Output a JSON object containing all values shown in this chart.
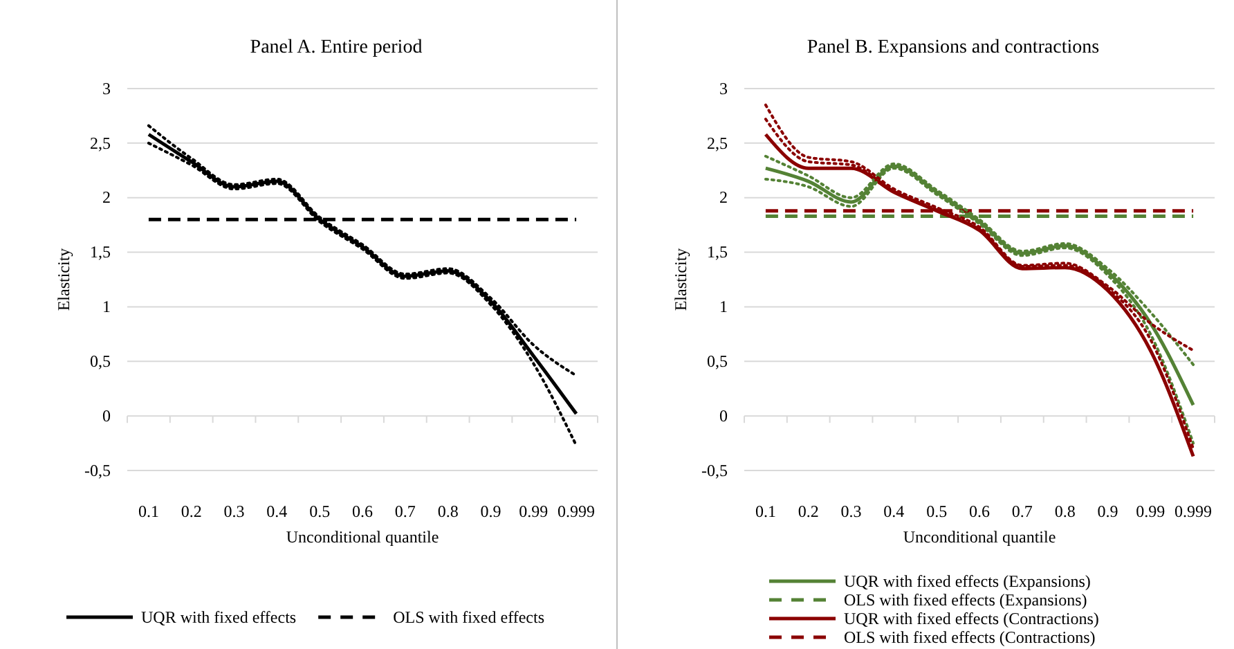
{
  "chart_data": [
    {
      "type": "line",
      "title": "Panel A. Entire period",
      "xlabel": "Unconditional quantile",
      "ylabel": "Elasticity",
      "categories": [
        "0.1",
        "0.2",
        "0.3",
        "0.4",
        "0.5",
        "0.6",
        "0.7",
        "0.8",
        "0.9",
        "0.99",
        "0.999"
      ],
      "ylim": [
        -0.5,
        3
      ],
      "yticks": [
        {
          "value": -0.5,
          "label": "-0,5"
        },
        0,
        {
          "value": 0.5,
          "label": "0,5"
        },
        1,
        {
          "value": 1.5,
          "label": "1,5"
        },
        2,
        {
          "value": 2.5,
          "label": "2,5"
        },
        3
      ],
      "grid": "y",
      "legend": "bottom",
      "marker": "none",
      "series": [
        {
          "name": "UQR with fixed effects",
          "color": "#000000",
          "line_style": "solid",
          "values": [
            2.58,
            2.33,
            2.1,
            2.15,
            1.8,
            1.55,
            1.28,
            1.33,
            1.05,
            0.55,
            0.02
          ]
        },
        {
          "name": "OLS with fixed effects",
          "color": "#000000",
          "line_style": "dashed",
          "values": [
            1.8,
            1.8,
            1.8,
            1.8,
            1.8,
            1.8,
            1.8,
            1.8,
            1.8,
            1.8,
            1.8
          ]
        },
        {
          "color": "#000000",
          "line_style": "dotted",
          "values": [
            2.66,
            2.36,
            2.12,
            2.17,
            1.82,
            1.57,
            1.3,
            1.35,
            1.08,
            0.65,
            0.37
          ]
        },
        {
          "color": "#000000",
          "line_style": "dotted",
          "values": [
            2.5,
            2.3,
            2.08,
            2.13,
            1.78,
            1.53,
            1.26,
            1.31,
            1.02,
            0.48,
            -0.27
          ]
        }
      ]
    },
    {
      "type": "line",
      "title": "Panel B. Expansions and contractions",
      "xlabel": "Unconditional quantile",
      "ylabel": "Elasticity",
      "categories": [
        "0.1",
        "0.2",
        "0.3",
        "0.4",
        "0.5",
        "0.6",
        "0.7",
        "0.8",
        "0.9",
        "0.99",
        "0.999"
      ],
      "ylim": [
        -0.5,
        3
      ],
      "yticks": [
        {
          "value": -0.5,
          "label": "-0,5"
        },
        0,
        {
          "value": 0.5,
          "label": "0,5"
        },
        1,
        {
          "value": 1.5,
          "label": "1,5"
        },
        2,
        {
          "value": 2.5,
          "label": "2,5"
        },
        3
      ],
      "grid": "y",
      "legend": "bottom",
      "marker": "none",
      "series": [
        {
          "name": "UQR with fixed effects (Expansions)",
          "color": "#548235",
          "line_style": "solid",
          "values": [
            2.27,
            2.15,
            1.96,
            2.29,
            2.05,
            1.78,
            1.49,
            1.56,
            1.32,
            0.85,
            0.1
          ]
        },
        {
          "name": "OLS with fixed effects (Expansions)",
          "color": "#548235",
          "line_style": "dashed",
          "values": [
            1.83,
            1.83,
            1.83,
            1.83,
            1.83,
            1.83,
            1.83,
            1.83,
            1.83,
            1.83,
            1.83
          ]
        },
        {
          "name": "UQR with fixed effects (Contractions)",
          "color": "#8b0000",
          "line_style": "solid",
          "values": [
            2.58,
            2.27,
            2.27,
            2.05,
            1.88,
            1.7,
            1.35,
            1.36,
            1.15,
            0.6,
            -0.37
          ]
        },
        {
          "name": "OLS with fixed effects (Contractions)",
          "color": "#8b0000",
          "line_style": "dashed",
          "values": [
            1.88,
            1.88,
            1.88,
            1.88,
            1.88,
            1.88,
            1.88,
            1.88,
            1.88,
            1.88,
            1.88
          ]
        },
        {
          "color": "#548235",
          "line_style": "dotted",
          "values": [
            2.38,
            2.2,
            2.0,
            2.31,
            2.07,
            1.8,
            1.51,
            1.58,
            1.35,
            0.95,
            0.47
          ]
        },
        {
          "color": "#548235",
          "line_style": "dotted",
          "values": [
            2.17,
            2.1,
            1.92,
            2.27,
            2.03,
            1.76,
            1.47,
            1.54,
            1.29,
            0.75,
            -0.25
          ]
        },
        {
          "color": "#8b0000",
          "line_style": "dotted",
          "values": [
            2.85,
            2.37,
            2.33,
            2.08,
            1.91,
            1.73,
            1.38,
            1.4,
            1.19,
            0.85,
            0.6
          ]
        },
        {
          "color": "#8b0000",
          "line_style": "dotted",
          "values": [
            2.72,
            2.33,
            2.3,
            2.06,
            1.89,
            1.71,
            1.37,
            1.38,
            1.17,
            0.7,
            -0.3
          ]
        }
      ]
    }
  ]
}
